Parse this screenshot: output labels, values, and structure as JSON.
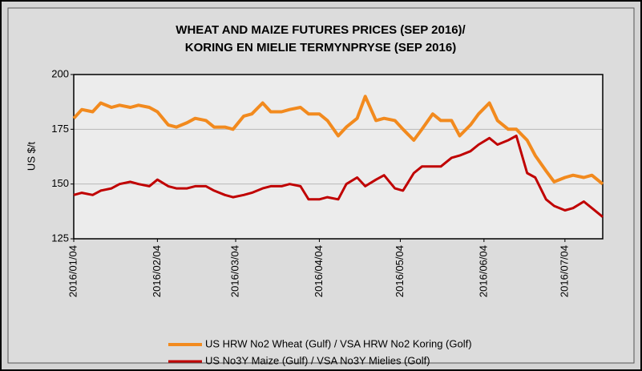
{
  "chart_data": {
    "type": "line",
    "title": [
      "WHEAT AND MAIZE FUTURES PRICES (SEP 2016)/",
      "KORING EN MIELIE TERMYNPRYSE (SEP 2016)"
    ],
    "y_label": "US $/t",
    "x": [
      "2016/01/04",
      "2016/01/07",
      "2016/01/11",
      "2016/01/14",
      "2016/01/18",
      "2016/01/21",
      "2016/01/25",
      "2016/01/28",
      "2016/02/01",
      "2016/02/04",
      "2016/02/08",
      "2016/02/11",
      "2016/02/15",
      "2016/02/18",
      "2016/02/22",
      "2016/02/25",
      "2016/02/29",
      "2016/03/03",
      "2016/03/07",
      "2016/03/10",
      "2016/03/14",
      "2016/03/17",
      "2016/03/21",
      "2016/03/24",
      "2016/03/28",
      "2016/03/31",
      "2016/04/04",
      "2016/04/07",
      "2016/04/11",
      "2016/04/14",
      "2016/04/18",
      "2016/04/21",
      "2016/04/25",
      "2016/04/28",
      "2016/05/02",
      "2016/05/05",
      "2016/05/09",
      "2016/05/12",
      "2016/05/16",
      "2016/05/19",
      "2016/05/23",
      "2016/05/26",
      "2016/05/30",
      "2016/06/02",
      "2016/06/06",
      "2016/06/09",
      "2016/06/13",
      "2016/06/16",
      "2016/06/20",
      "2016/06/23",
      "2016/06/27",
      "2016/06/30",
      "2016/07/04",
      "2016/07/07",
      "2016/07/11",
      "2016/07/14",
      "2016/07/18"
    ],
    "series": [
      {
        "name": "US HRW No2 Wheat (Gulf) / VSA HRW No2 Koring (Golf)",
        "color": "#f28a1e",
        "values": [
          180,
          184,
          183,
          187,
          185,
          186,
          185,
          186,
          185,
          183,
          177,
          176,
          178,
          180,
          179,
          176,
          176,
          175,
          181,
          182,
          187,
          183,
          183,
          184,
          185,
          182,
          182,
          179,
          172,
          176,
          180,
          190,
          179,
          180,
          179,
          175,
          170,
          175,
          182,
          179,
          179,
          172,
          177,
          182,
          187,
          179,
          175,
          175,
          170,
          163,
          156,
          151,
          153,
          154,
          153,
          154,
          150
        ]
      },
      {
        "name": "US No3Y Maize (Gulf) / VSA No3Y Mielies (Golf)",
        "color": "#c00000",
        "values": [
          145,
          146,
          145,
          147,
          148,
          150,
          151,
          150,
          149,
          152,
          149,
          148,
          148,
          149,
          149,
          147,
          145,
          144,
          145,
          146,
          148,
          149,
          149,
          150,
          149,
          143,
          143,
          144,
          143,
          150,
          153,
          149,
          152,
          154,
          148,
          147,
          155,
          158,
          158,
          158,
          162,
          163,
          165,
          168,
          171,
          168,
          170,
          172,
          155,
          153,
          143,
          140,
          138,
          139,
          142,
          139,
          135
        ]
      }
    ],
    "xlim": [
      "2016/01/04",
      "2016/07/18"
    ],
    "xticks": [
      "2016/01/04",
      "2016/02/04",
      "2016/03/04",
      "2016/04/04",
      "2016/05/04",
      "2016/06/04",
      "2016/07/04"
    ],
    "ylim": [
      125,
      200
    ],
    "yticks": [
      125,
      150,
      175,
      200
    ],
    "grid": true
  }
}
